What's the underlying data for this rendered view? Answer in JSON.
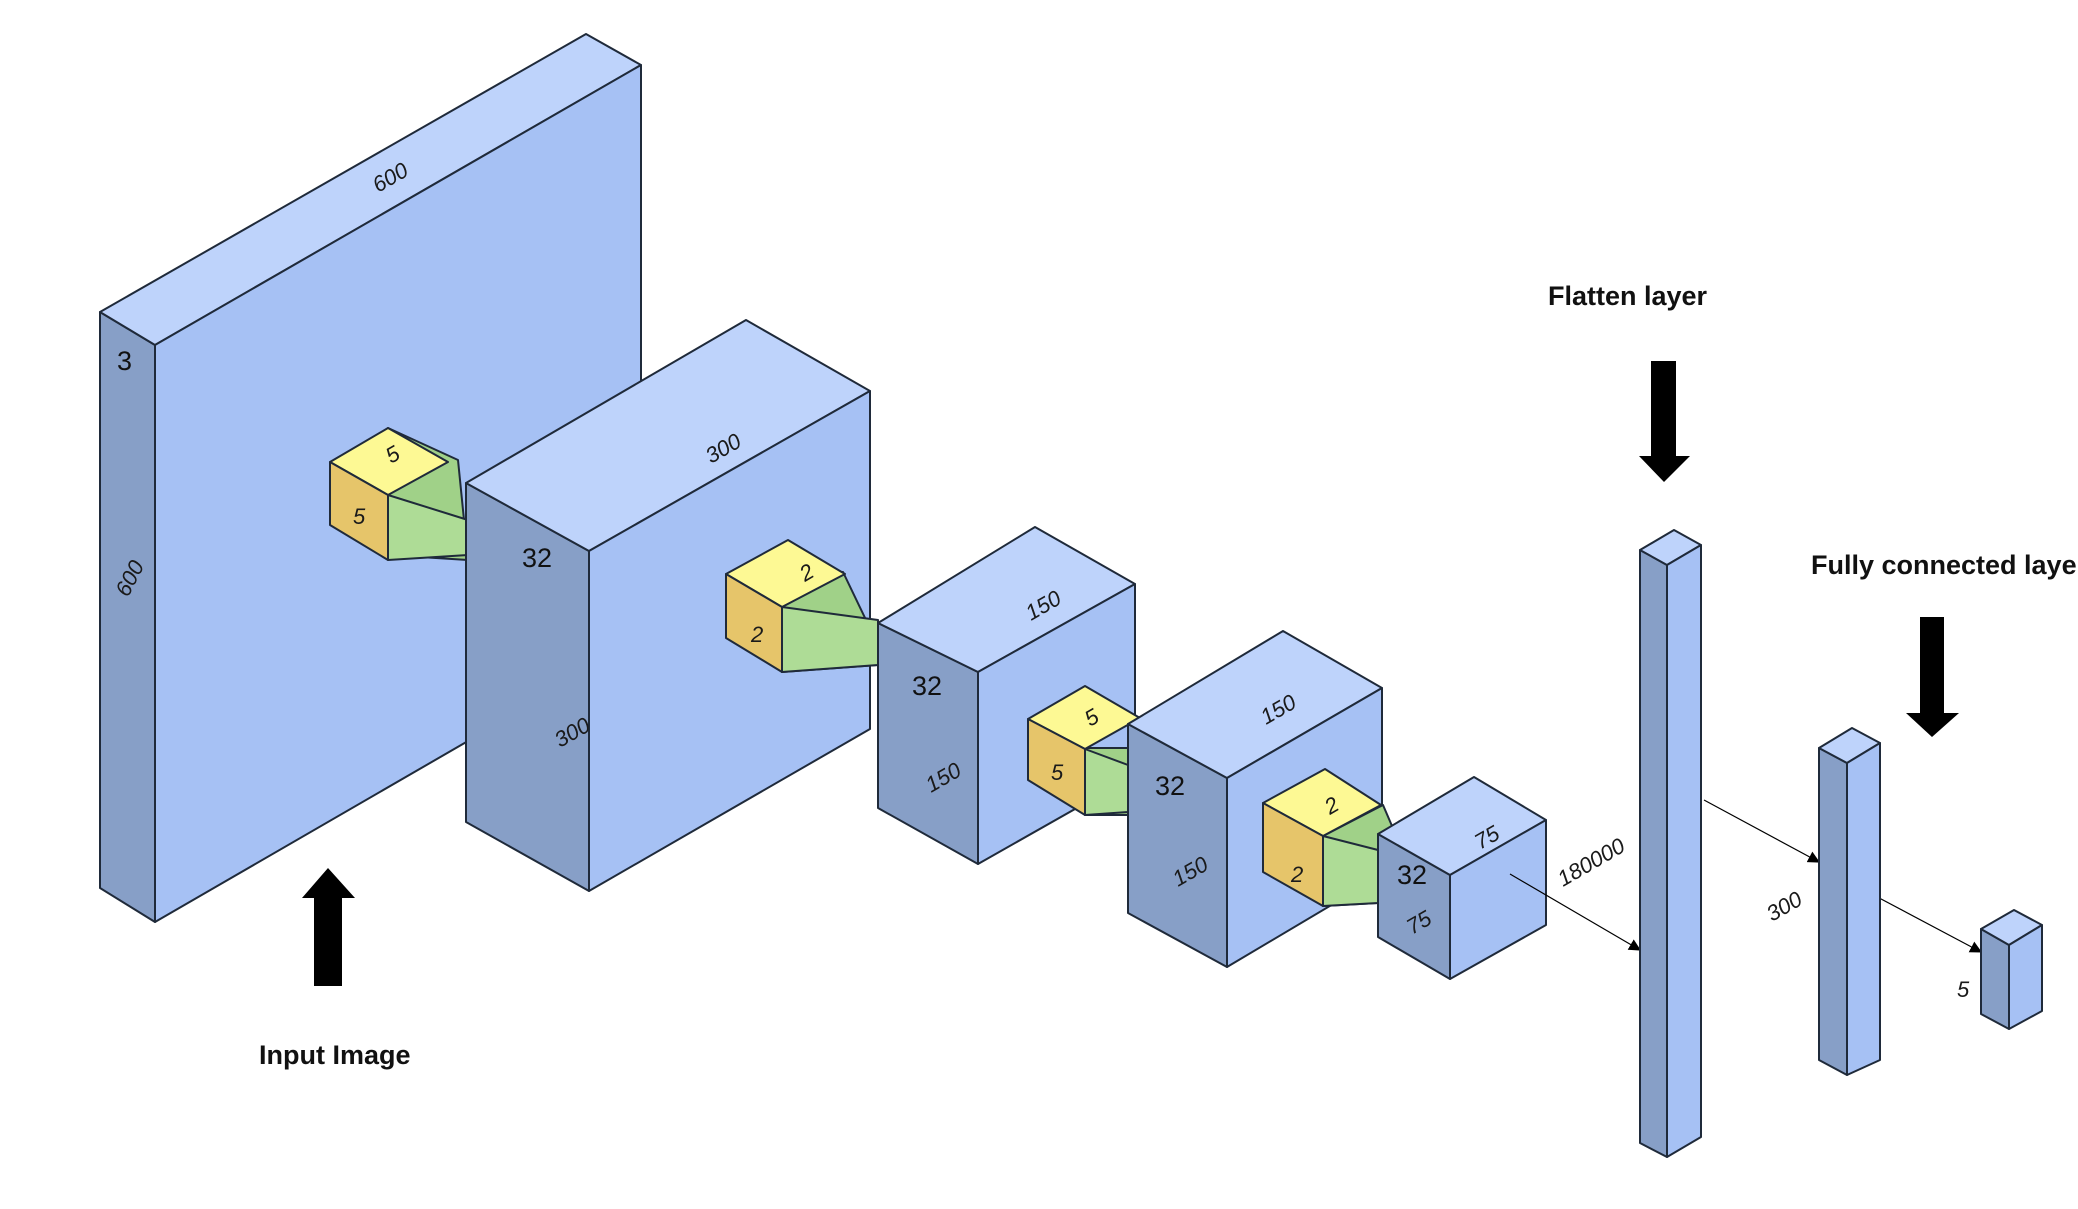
{
  "colors": {
    "front": "#a6c1f4",
    "top": "#bed3fb",
    "side": "#879fc7",
    "kernel_top": "#fdf994",
    "kernel_side": "#e6c56a",
    "kernel_front": "#aedc96",
    "kernel_frustum": "#a0d188",
    "edge": "#1f2a3a",
    "arrow": "#000000"
  },
  "captions": {
    "input": "Input Image",
    "flatten": "Flatten layer",
    "fc": "Fully connected layer"
  },
  "layers": [
    {
      "id": "input",
      "depth": "3",
      "height": "600",
      "width": "600"
    },
    {
      "id": "conv1",
      "depth": "32",
      "height": "300",
      "width": "300"
    },
    {
      "id": "pool1",
      "depth": "32",
      "height": "150",
      "width": "150"
    },
    {
      "id": "conv2",
      "depth": "32",
      "height": "150",
      "width": "150"
    },
    {
      "id": "pool2",
      "depth": "32",
      "height": "75",
      "width": "75"
    },
    {
      "id": "flatten",
      "size": "180000"
    },
    {
      "id": "fc1",
      "size": "300"
    },
    {
      "id": "output",
      "size": "5"
    }
  ],
  "kernels": [
    {
      "id": "kernel1",
      "top": "5",
      "side": "5"
    },
    {
      "id": "kernel2",
      "top": "2",
      "side": "2"
    },
    {
      "id": "kernel3",
      "top": "5",
      "side": "5"
    },
    {
      "id": "kernel4",
      "top": "2",
      "side": "2"
    }
  ]
}
